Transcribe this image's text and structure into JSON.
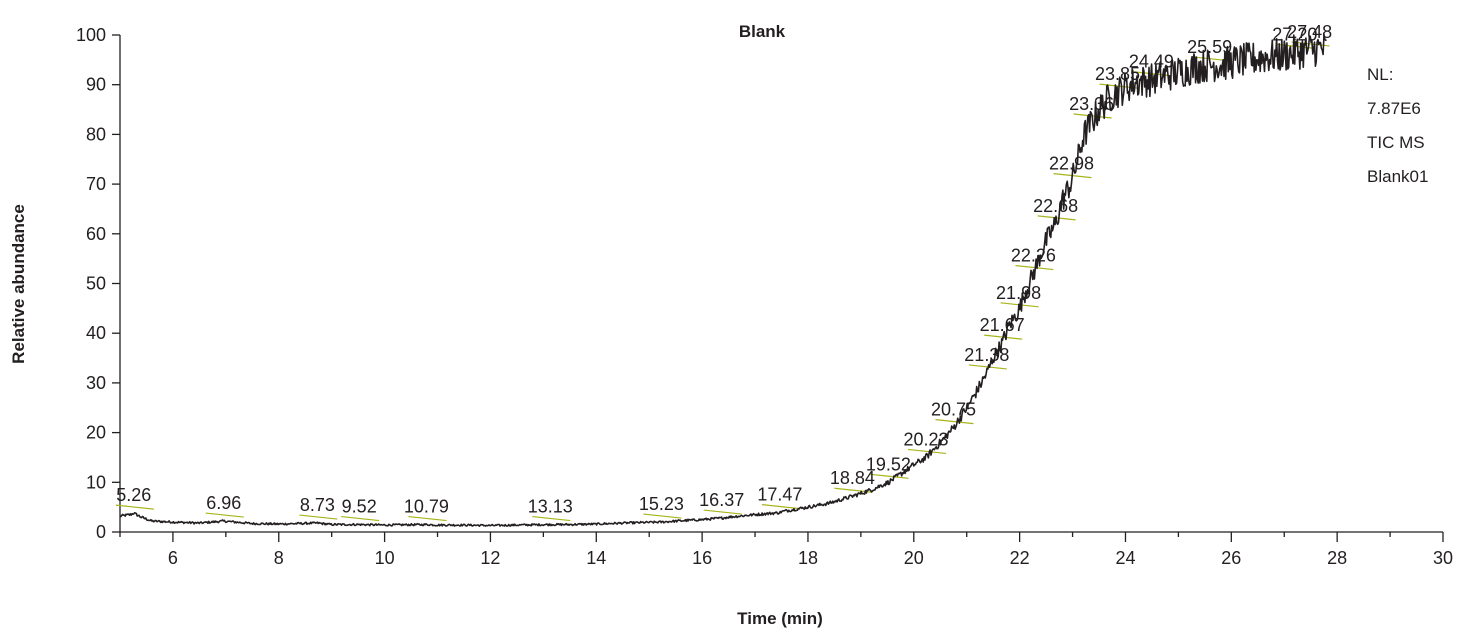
{
  "chart_data": {
    "type": "line",
    "title": "Blank",
    "xlabel": "Time (min)",
    "ylabel": "Relative abundance",
    "xlim": [
      5,
      30
    ],
    "ylim": [
      0,
      100
    ],
    "x_ticks": [
      6,
      8,
      10,
      12,
      14,
      16,
      18,
      20,
      22,
      24,
      26,
      28,
      30
    ],
    "y_ticks": [
      0,
      10,
      20,
      30,
      40,
      50,
      60,
      70,
      80,
      90,
      100
    ],
    "grid": false,
    "info_text": [
      "NL:",
      "7.87E6",
      "TIC MS",
      "Blank01"
    ],
    "series": [
      {
        "x": [
          5.0,
          5.2,
          5.26,
          5.4,
          5.6,
          6.0,
          6.5,
          6.96,
          7.5,
          8.0,
          8.73,
          9.0,
          9.52,
          10.0,
          10.79,
          11.0,
          11.5,
          12.0,
          12.5,
          13.13,
          13.5,
          14.0,
          14.5,
          15.23,
          15.5,
          16.0,
          16.37,
          16.5,
          17.0,
          17.47,
          17.5,
          18.0,
          18.4,
          18.84,
          19.2,
          19.52,
          19.8,
          20.0,
          20.23,
          20.5,
          20.75,
          21.0,
          21.2,
          21.38,
          21.5,
          21.67,
          21.8,
          21.98,
          22.1,
          22.26,
          22.4,
          22.5,
          22.68,
          22.8,
          22.98,
          23.1,
          23.2,
          23.36,
          23.5,
          23.7,
          23.85,
          24.0,
          24.2,
          24.49,
          24.8,
          25.0,
          25.3,
          25.59,
          25.8,
          26.0,
          26.3,
          26.6,
          27.0,
          27.2,
          27.48,
          27.7,
          27.8
        ],
        "y": [
          3.2,
          3.5,
          3.8,
          3.0,
          2.2,
          2.0,
          1.8,
          2.2,
          1.7,
          1.6,
          1.8,
          1.5,
          1.5,
          1.4,
          1.5,
          1.4,
          1.4,
          1.3,
          1.4,
          1.5,
          1.5,
          1.6,
          1.8,
          2.0,
          2.2,
          2.5,
          2.8,
          3.0,
          3.5,
          3.9,
          4.1,
          5.0,
          5.8,
          7.2,
          8.5,
          10.0,
          12.0,
          13.5,
          15.0,
          18.0,
          21.0,
          25.0,
          28.5,
          32.0,
          35.0,
          38.0,
          41.5,
          44.5,
          48.0,
          52.0,
          56.0,
          58.5,
          62.0,
          66.5,
          70.5,
          75.0,
          79.5,
          82.5,
          85.0,
          87.5,
          88.5,
          89.5,
          90.5,
          91.0,
          92.0,
          92.5,
          93.5,
          94.0,
          94.0,
          94.5,
          95.0,
          95.5,
          96.0,
          96.5,
          97.0,
          97.3,
          97.0
        ]
      }
    ],
    "peak_labels": [
      {
        "text": "5.26",
        "x": 5.26,
        "y": 3.8
      },
      {
        "text": "6.96",
        "x": 6.96,
        "y": 2.2
      },
      {
        "text": "8.73",
        "x": 8.73,
        "y": 1.8
      },
      {
        "text": "9.52",
        "x": 9.52,
        "y": 1.5
      },
      {
        "text": "10.79",
        "x": 10.79,
        "y": 1.5
      },
      {
        "text": "13.13",
        "x": 13.13,
        "y": 1.5
      },
      {
        "text": "15.23",
        "x": 15.23,
        "y": 2.0
      },
      {
        "text": "16.37",
        "x": 16.37,
        "y": 2.8
      },
      {
        "text": "17.47",
        "x": 17.47,
        "y": 3.9
      },
      {
        "text": "18.84",
        "x": 18.84,
        "y": 7.2
      },
      {
        "text": "19.52",
        "x": 19.52,
        "y": 10.0
      },
      {
        "text": "20.23",
        "x": 20.23,
        "y": 15.0
      },
      {
        "text": "20.75",
        "x": 20.75,
        "y": 21.0
      },
      {
        "text": "21.38",
        "x": 21.38,
        "y": 32.0
      },
      {
        "text": "21.67",
        "x": 21.67,
        "y": 38.0
      },
      {
        "text": "21.98",
        "x": 21.98,
        "y": 44.5
      },
      {
        "text": "22.26",
        "x": 22.26,
        "y": 52.0
      },
      {
        "text": "22.68",
        "x": 22.68,
        "y": 62.0
      },
      {
        "text": "22.98",
        "x": 22.98,
        "y": 70.5
      },
      {
        "text": "23.36",
        "x": 23.36,
        "y": 82.5
      },
      {
        "text": "23.85",
        "x": 23.85,
        "y": 88.5
      },
      {
        "text": "24.49",
        "x": 24.49,
        "y": 91.0
      },
      {
        "text": "25.59",
        "x": 25.59,
        "y": 94.0
      },
      {
        "text": "27.20",
        "x": 27.2,
        "y": 96.5
      },
      {
        "text": "27.48",
        "x": 27.48,
        "y": 97.0
      }
    ]
  }
}
